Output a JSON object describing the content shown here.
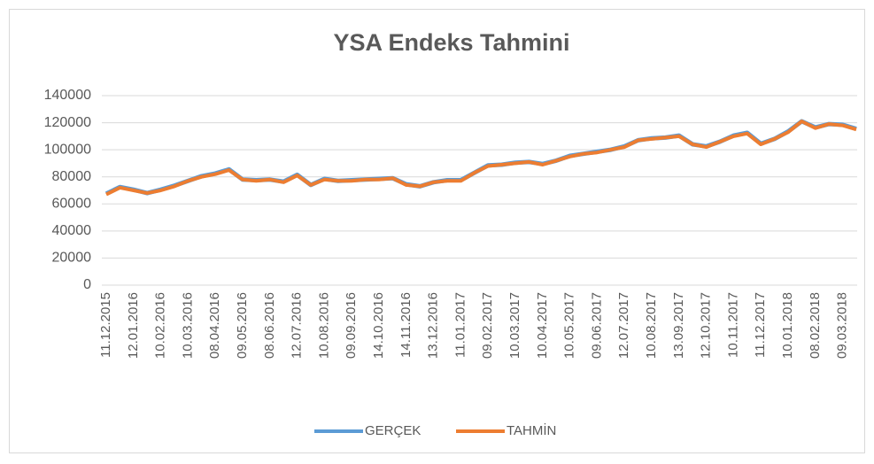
{
  "chart_data": {
    "type": "line",
    "title": "YSA Endeks Tahmini",
    "categories": [
      "11.12.2015",
      null,
      "12.01.2016",
      null,
      "10.02.2016",
      null,
      "10.03.2016",
      null,
      "08.04.2016",
      null,
      "09.05.2016",
      null,
      "08.06.2016",
      null,
      "12.07.2016",
      null,
      "10.08.2016",
      null,
      "09.09.2016",
      null,
      "14.10.2016",
      null,
      "14.11.2016",
      null,
      "13.12.2016",
      null,
      "11.01.2017",
      null,
      "09.02.2017",
      null,
      "10.03.2017",
      null,
      "10.04.2017",
      null,
      "10.05.2017",
      null,
      "09.06.2017",
      null,
      "12.07.2017",
      null,
      "10.08.2017",
      null,
      "13.09.2017",
      null,
      "12.10.2017",
      null,
      "10.11.2017",
      null,
      "11.12.2017",
      null,
      "10.01.2018",
      null,
      "08.02.2018",
      null,
      "09.03.2018",
      null
    ],
    "series": [
      {
        "name": "GERÇEK",
        "color": "#5b9bd5",
        "values": [
          67500,
          72500,
          70500,
          68000,
          70500,
          73500,
          77000,
          80500,
          82500,
          85500,
          78000,
          77500,
          78000,
          76500,
          81500,
          74000,
          78500,
          77000,
          77500,
          78000,
          78500,
          79000,
          74500,
          73000,
          76000,
          77500,
          77500,
          83000,
          88500,
          89000,
          90500,
          91000,
          89500,
          92000,
          95500,
          97000,
          98500,
          100000,
          102500,
          107000,
          108500,
          109000,
          110500,
          104000,
          102500,
          106000,
          110500,
          112500,
          104500,
          108000,
          113500,
          121000,
          116500,
          119000,
          118500,
          115500
        ]
      },
      {
        "name": "TAHMİN",
        "color": "#ed7d31",
        "values": [
          67000,
          72000,
          70000,
          68000,
          70000,
          73000,
          77000,
          80000,
          82000,
          85000,
          78000,
          77000,
          78000,
          76000,
          81000,
          74000,
          78000,
          77000,
          77000,
          78000,
          78000,
          79000,
          74000,
          73000,
          76000,
          77000,
          77000,
          83000,
          88000,
          89000,
          90000,
          91000,
          89000,
          92000,
          95000,
          97000,
          98000,
          100000,
          102000,
          107000,
          108000,
          109000,
          110000,
          104000,
          102000,
          106000,
          110000,
          112000,
          104000,
          108000,
          113000,
          121000,
          116000,
          119000,
          118000,
          115000
        ]
      }
    ],
    "ylim": [
      0,
      140000
    ],
    "yticks": [
      0,
      20000,
      40000,
      60000,
      80000,
      100000,
      120000,
      140000
    ],
    "grid": true,
    "legend": "bottom"
  }
}
